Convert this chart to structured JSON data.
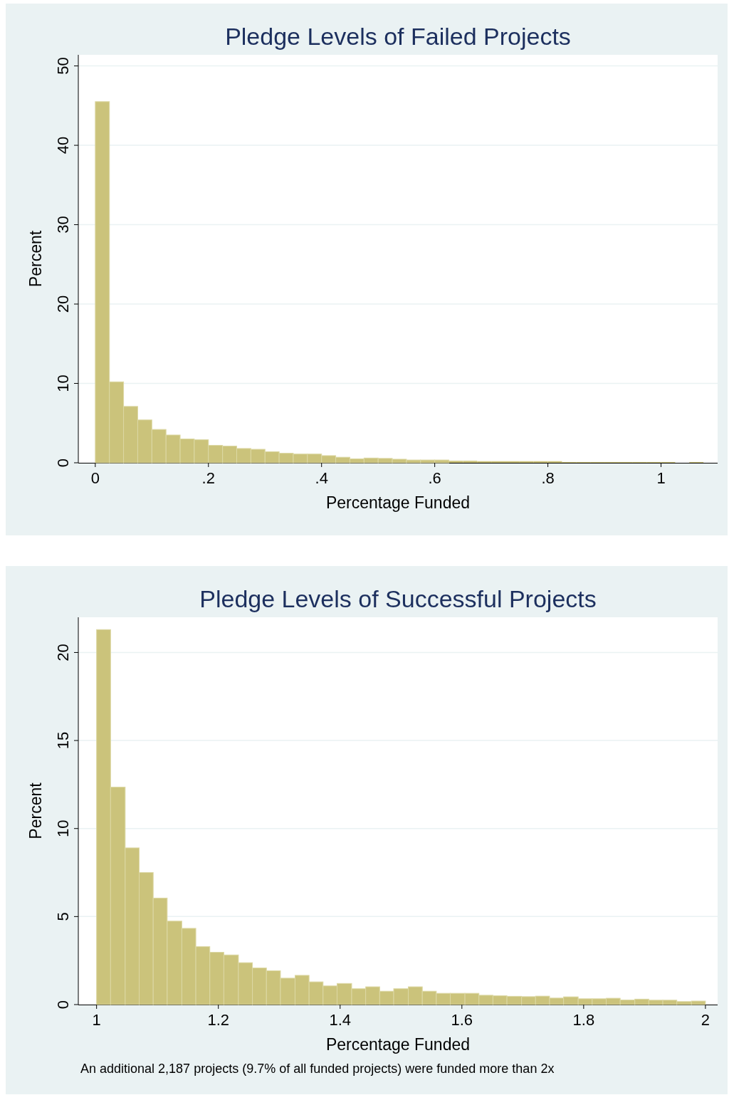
{
  "chart_data": [
    {
      "type": "histogram",
      "title": "Pledge Levels of Failed Projects",
      "xlabel": "Percentage Funded",
      "ylabel": "Percent",
      "color": "#cbc37b",
      "grid": "y",
      "bins": [
        0,
        0.025,
        0.05,
        0.075,
        0.1,
        0.125,
        0.15,
        0.175,
        0.2,
        0.225,
        0.25,
        0.275,
        0.3,
        0.325,
        0.35,
        0.375,
        0.4,
        0.425,
        0.45,
        0.475,
        0.5,
        0.525,
        0.55,
        0.575,
        0.6,
        0.625,
        0.65,
        0.675,
        0.7,
        0.725,
        0.75,
        0.775,
        0.8,
        0.825,
        0.85,
        0.875,
        0.9,
        0.925,
        0.95,
        0.975,
        1,
        1.025,
        1.05,
        1.075
      ],
      "values": [
        45.5,
        10.2,
        7.1,
        5.4,
        4.2,
        3.5,
        3.0,
        2.9,
        2.2,
        2.1,
        1.8,
        1.7,
        1.4,
        1.2,
        1.1,
        1.1,
        0.9,
        0.7,
        0.5,
        0.6,
        0.55,
        0.45,
        0.35,
        0.35,
        0.35,
        0.25,
        0.25,
        0.2,
        0.2,
        0.2,
        0.2,
        0.2,
        0.2,
        0.1,
        0.1,
        0.1,
        0.1,
        0.1,
        0.1,
        0.1,
        0.1,
        0,
        0.1
      ],
      "xlim": [
        -0.03,
        1.1
      ],
      "xticks": [
        0,
        {
          "value": 0.2,
          "label": ".2"
        },
        {
          "value": 0.4,
          "label": ".4"
        },
        {
          "value": 0.6,
          "label": ".6"
        },
        {
          "value": 0.8,
          "label": ".8"
        },
        1
      ],
      "ylim": [
        0,
        51.4
      ],
      "yticks": [
        0,
        10,
        20,
        30,
        40,
        50
      ]
    },
    {
      "type": "histogram",
      "title": "Pledge Levels of Successful Projects",
      "xlabel": "Percentage Funded",
      "ylabel": "Percent",
      "color": "#cbc37b",
      "grid": "y",
      "bins": [
        1,
        1.023,
        1.047,
        1.07,
        1.093,
        1.116,
        1.14,
        1.163,
        1.186,
        1.209,
        1.233,
        1.256,
        1.279,
        1.302,
        1.326,
        1.349,
        1.372,
        1.395,
        1.419,
        1.442,
        1.465,
        1.488,
        1.512,
        1.535,
        1.558,
        1.581,
        1.605,
        1.628,
        1.651,
        1.674,
        1.698,
        1.721,
        1.744,
        1.767,
        1.791,
        1.814,
        1.837,
        1.86,
        1.884,
        1.907,
        1.93,
        1.953,
        1.977,
        2
      ],
      "values": [
        21.3,
        12.35,
        8.9,
        7.5,
        6.05,
        4.74,
        4.33,
        3.29,
        2.97,
        2.82,
        2.38,
        2.08,
        1.92,
        1.5,
        1.66,
        1.29,
        1.06,
        1.2,
        0.9,
        1.01,
        0.76,
        0.9,
        1.01,
        0.76,
        0.64,
        0.64,
        0.64,
        0.53,
        0.5,
        0.47,
        0.45,
        0.48,
        0.37,
        0.44,
        0.33,
        0.33,
        0.36,
        0.26,
        0.31,
        0.25,
        0.25,
        0.17,
        0.2
      ],
      "xlim": [
        0.97,
        2.02
      ],
      "xticks": [
        1,
        1.2,
        1.4,
        1.6,
        1.8,
        2
      ],
      "ylim": [
        0,
        22
      ],
      "yticks": [
        0,
        5,
        10,
        15,
        20
      ],
      "annotations": [
        "An additional 2,187 projects (9.7% of all funded projects) were funded more than 2x"
      ]
    }
  ]
}
